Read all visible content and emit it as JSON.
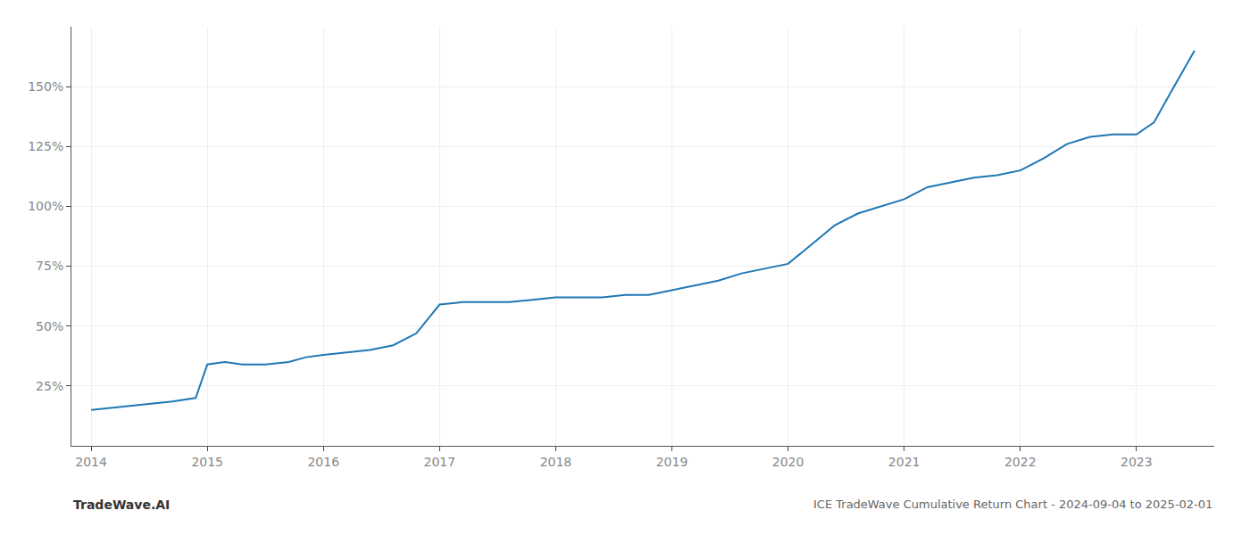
{
  "chart_data": {
    "type": "line",
    "title": "ICE TradeWave Cumulative Return Chart - 2024-09-04 to 2025-02-01",
    "annotations": [
      "TradeWave.AI"
    ],
    "x": [
      2014.0,
      2014.1,
      2014.2,
      2014.3,
      2014.5,
      2014.7,
      2014.9,
      2015.0,
      2015.15,
      2015.3,
      2015.5,
      2015.7,
      2015.85,
      2016.0,
      2016.2,
      2016.4,
      2016.6,
      2016.8,
      2017.0,
      2017.2,
      2017.4,
      2017.6,
      2017.8,
      2018.0,
      2018.2,
      2018.4,
      2018.6,
      2018.8,
      2019.0,
      2019.2,
      2019.4,
      2019.6,
      2019.8,
      2020.0,
      2020.2,
      2020.4,
      2020.6,
      2020.8,
      2021.0,
      2021.2,
      2021.4,
      2021.6,
      2021.8,
      2022.0,
      2022.2,
      2022.4,
      2022.6,
      2022.8,
      2023.0,
      2023.15,
      2023.3,
      2023.5
    ],
    "values": [
      15,
      15.5,
      16,
      16.5,
      17.5,
      18.5,
      20,
      34,
      35,
      34,
      34,
      35,
      37,
      38,
      39,
      40,
      42,
      47,
      59,
      60,
      60,
      60,
      61,
      62,
      62,
      62,
      63,
      63,
      65,
      67,
      69,
      72,
      74,
      76,
      84,
      92,
      97,
      100,
      103,
      108,
      110,
      112,
      113,
      115,
      120,
      126,
      129,
      130,
      130,
      135,
      148,
      165
    ],
    "color": "#1f77b4",
    "xlim": [
      2013.83,
      2023.67
    ],
    "xticks": [
      2014,
      2015,
      2016,
      2017,
      2018,
      2019,
      2020,
      2021,
      2022,
      2023
    ],
    "ylim": [
      0,
      175
    ],
    "yticks": [
      {
        "value": 25,
        "label": "25%"
      },
      {
        "value": 50,
        "label": "50%"
      },
      {
        "value": 75,
        "label": "75%"
      },
      {
        "value": 100,
        "label": "100%"
      },
      {
        "value": 125,
        "label": "125%"
      },
      {
        "value": 150,
        "label": "150%"
      }
    ],
    "grid": true
  }
}
